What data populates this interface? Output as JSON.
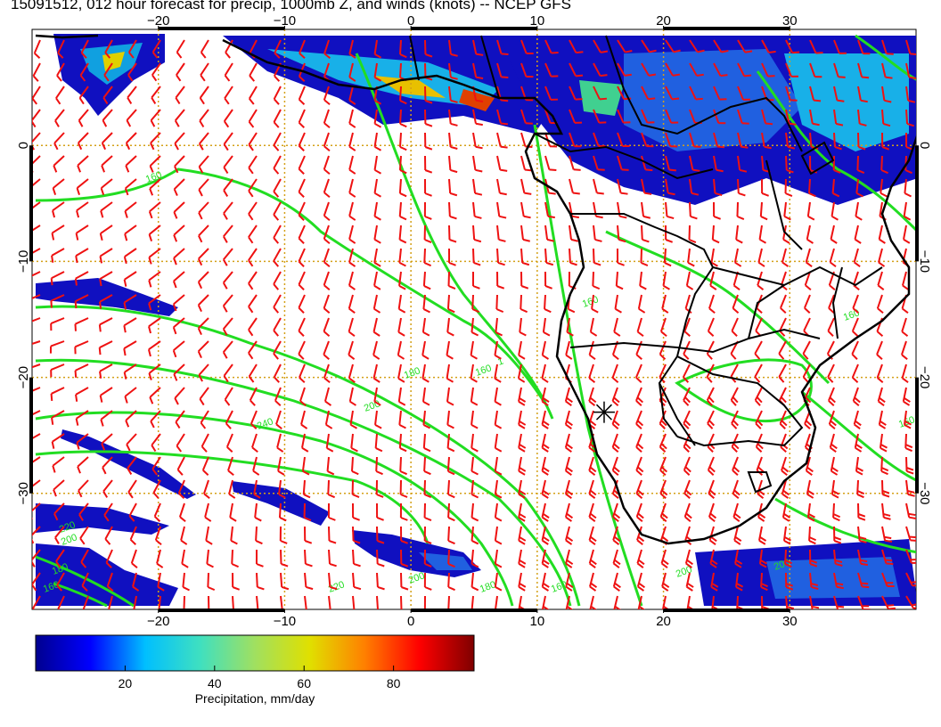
{
  "title": "15091512, 012 hour forecast for precip, 1000mb Z, and winds (knots) -- NCEP GFS",
  "map": {
    "lon_range": [
      -30,
      40
    ],
    "lat_range": [
      -40,
      10
    ],
    "lon_ticks": [
      -20,
      -10,
      0,
      10,
      20,
      30
    ],
    "lat_ticks": [
      0,
      -10,
      -20,
      -30
    ],
    "grid": "dotted",
    "grid_color": "#d4a017",
    "coast_color": "#000000",
    "contour_color": "#22dd22",
    "barb_color": "#ee1111"
  },
  "contours": [
    {
      "label": "160"
    },
    {
      "label": "180"
    },
    {
      "label": "200"
    },
    {
      "label": "220"
    },
    {
      "label": "240"
    },
    {
      "label": "1"
    }
  ],
  "marker": {
    "name": "station-marker",
    "lon": 15.3,
    "lat": -23.0
  },
  "colorbar": {
    "label": "Precipitation, mm/day",
    "min": 0,
    "max": 98,
    "ticks": [
      20,
      40,
      60,
      80
    ],
    "colormap": [
      "#00008f",
      "#0000ff",
      "#00bfff",
      "#3fe0c0",
      "#a0e060",
      "#e0e000",
      "#ff8000",
      "#ff0000",
      "#7f0000"
    ]
  }
}
